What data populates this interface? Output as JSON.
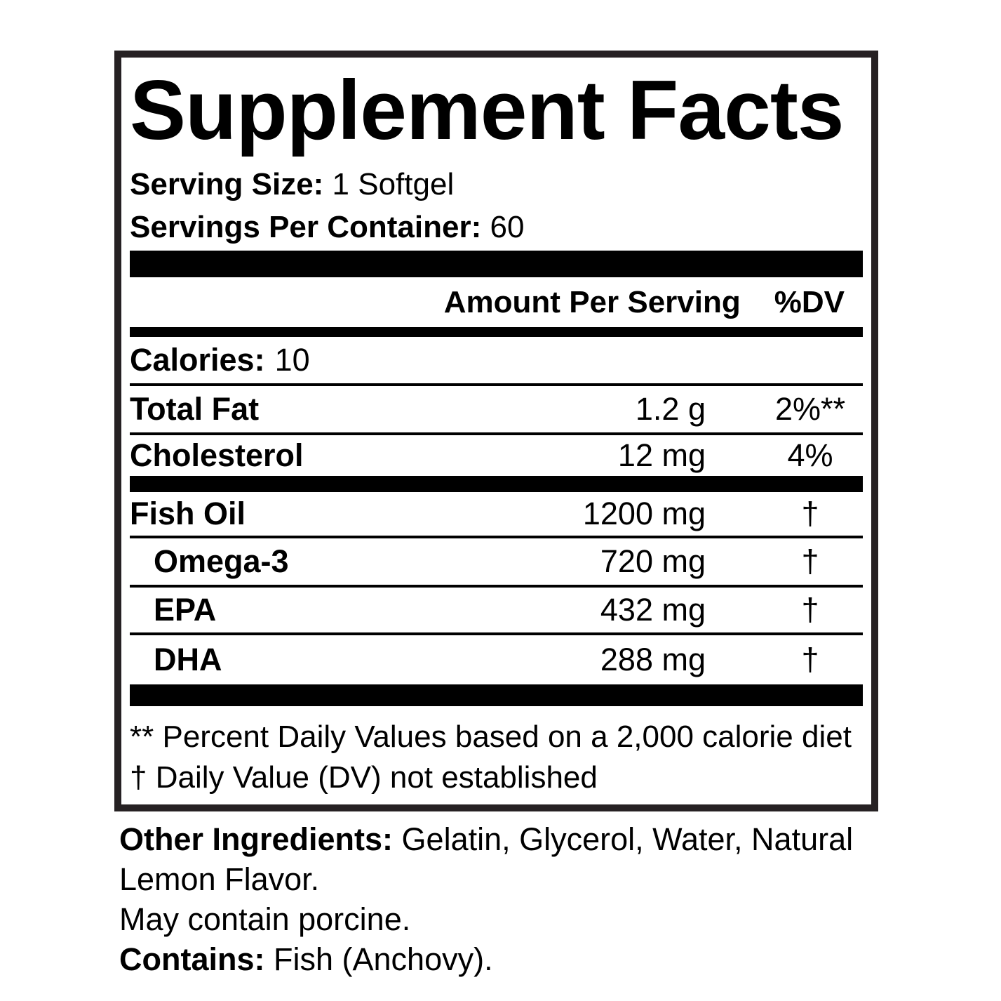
{
  "panel": {
    "title": "Supplement Facts",
    "serving_size_label": "Serving Size:",
    "serving_size_value": "1 Softgel",
    "servings_per_container_label": "Servings Per Container:",
    "servings_per_container_value": "60",
    "header": {
      "amount_label": "Amount Per Serving",
      "dv_label": "%DV"
    },
    "calories": {
      "label": "Calories:",
      "value": "10"
    },
    "rows": [
      {
        "name": "Total Fat",
        "amount": "1.2 g",
        "dv": "2%**"
      },
      {
        "name": "Cholesterol",
        "amount": "12 mg",
        "dv": "4%"
      },
      {
        "name": "Fish Oil",
        "amount": "1200 mg",
        "dv": "†"
      },
      {
        "name": "Omega-3",
        "amount": "720 mg",
        "dv": "†"
      },
      {
        "name": "EPA",
        "amount": "432 mg",
        "dv": "†"
      },
      {
        "name": "DHA",
        "amount": "288 mg",
        "dv": "†"
      }
    ],
    "footnotes": {
      "line1": "** Percent Daily Values based on a 2,000 calorie diet",
      "line2": "† Daily Value (DV) not established"
    }
  },
  "other": {
    "other_ingredients_label": "Other Ingredients:",
    "other_ingredients_value": "Gelatin, Glycerol, Water, Natural Lemon Flavor.",
    "may_contain": "May contain porcine.",
    "contains_label": "Contains:",
    "contains_value": "Fish (Anchovy)."
  },
  "colors": {
    "text": "#000000",
    "border": "#262123",
    "bar": "#000000",
    "background": "#ffffff"
  }
}
